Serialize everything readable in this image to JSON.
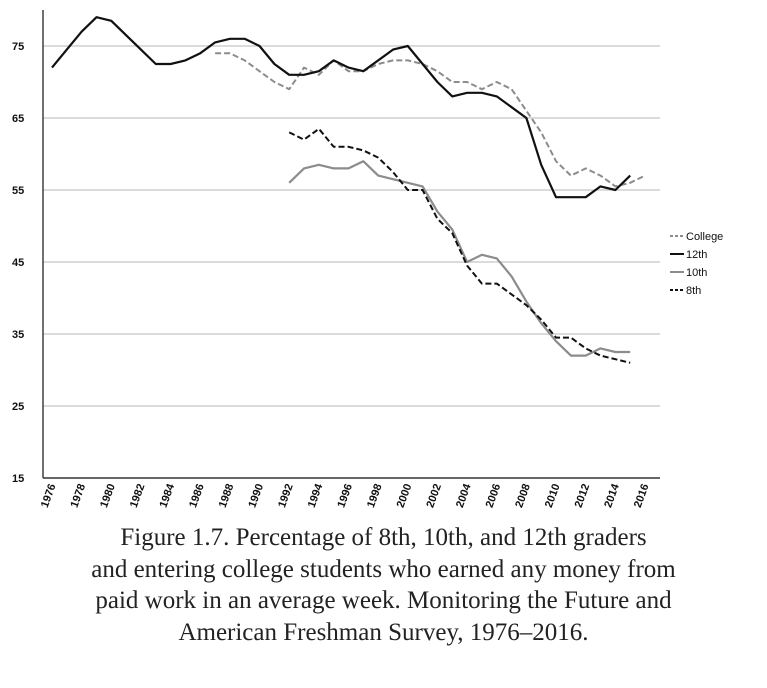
{
  "chart_data": {
    "type": "line",
    "title": "",
    "xlabel": "",
    "ylabel": "",
    "ylim": [
      15,
      80
    ],
    "xlim": [
      1976,
      2016
    ],
    "yticks": [
      15,
      25,
      35,
      45,
      55,
      65,
      75
    ],
    "xticks": [
      1976,
      1978,
      1980,
      1982,
      1984,
      1986,
      1988,
      1990,
      1992,
      1994,
      1996,
      1998,
      2000,
      2002,
      2004,
      2006,
      2008,
      2010,
      2012,
      2014,
      2016
    ],
    "grid": "horizontal",
    "legend_position": "right",
    "series": [
      {
        "name": "College",
        "style": "dashed",
        "color": "#8c8c8c",
        "x": [
          1987,
          1988,
          1989,
          1990,
          1991,
          1992,
          1993,
          1994,
          1995,
          1996,
          1997,
          1998,
          1999,
          2000,
          2001,
          2002,
          2003,
          2004,
          2005,
          2006,
          2007,
          2008,
          2009,
          2010,
          2011,
          2012,
          2013,
          2014,
          2015,
          2016
        ],
        "y": [
          74,
          74,
          73,
          71.5,
          70,
          69,
          72,
          71,
          73,
          71.5,
          71.5,
          72.5,
          73,
          73,
          72.5,
          71.5,
          70,
          70,
          69,
          70,
          69,
          66,
          63,
          59,
          57,
          58,
          57,
          55.5,
          56,
          57
        ]
      },
      {
        "name": "12th",
        "style": "solid",
        "color": "#111111",
        "x": [
          1976,
          1977,
          1978,
          1979,
          1980,
          1981,
          1982,
          1983,
          1984,
          1985,
          1986,
          1987,
          1988,
          1989,
          1990,
          1991,
          1992,
          1993,
          1994,
          1995,
          1996,
          1997,
          1998,
          1999,
          2000,
          2001,
          2002,
          2003,
          2004,
          2005,
          2006,
          2007,
          2008,
          2009,
          2010,
          2011,
          2012,
          2013,
          2014,
          2015
        ],
        "y": [
          72,
          74.5,
          77,
          79,
          78.5,
          76.5,
          74.5,
          72.5,
          72.5,
          73,
          74,
          75.5,
          76,
          76,
          75,
          72.5,
          71,
          71,
          71.5,
          73,
          72,
          71.5,
          73,
          74.5,
          75,
          72.5,
          70,
          68,
          68.5,
          68.5,
          68,
          66.5,
          65,
          58.5,
          54,
          54,
          54,
          55.5,
          55,
          57
        ]
      },
      {
        "name": "10th",
        "style": "solid",
        "color": "#8c8c8c",
        "x": [
          1992,
          1993,
          1994,
          1995,
          1996,
          1997,
          1998,
          1999,
          2000,
          2001,
          2002,
          2003,
          2004,
          2005,
          2006,
          2007,
          2008,
          2009,
          2010,
          2011,
          2012,
          2013,
          2014,
          2015
        ],
        "y": [
          56,
          58,
          58.5,
          58,
          58,
          59,
          57,
          56.5,
          56,
          55.5,
          52,
          49.5,
          45,
          46,
          45.5,
          43,
          39.5,
          36.5,
          34,
          32,
          32,
          33,
          32.5,
          32.5
        ]
      },
      {
        "name": "8th",
        "style": "dashed",
        "color": "#111111",
        "x": [
          1992,
          1993,
          1994,
          1995,
          1996,
          1997,
          1998,
          1999,
          2000,
          2001,
          2002,
          2003,
          2004,
          2005,
          2006,
          2007,
          2008,
          2009,
          2010,
          2011,
          2012,
          2013,
          2014,
          2015
        ],
        "y": [
          63,
          62,
          63.5,
          61,
          61,
          60.5,
          59.5,
          57.5,
          55,
          55,
          51,
          49,
          44.5,
          42,
          42,
          40.5,
          39,
          37,
          34.5,
          34.5,
          33,
          32,
          31.5,
          31
        ]
      }
    ]
  },
  "caption": {
    "lines": [
      "Figure 1.7. Percentage of 8th, 10th, and 12th graders",
      "and entering college students who earned any money from",
      "paid work in an average week. Monitoring the Future and",
      "American Freshman Survey, 1976–2016."
    ]
  }
}
